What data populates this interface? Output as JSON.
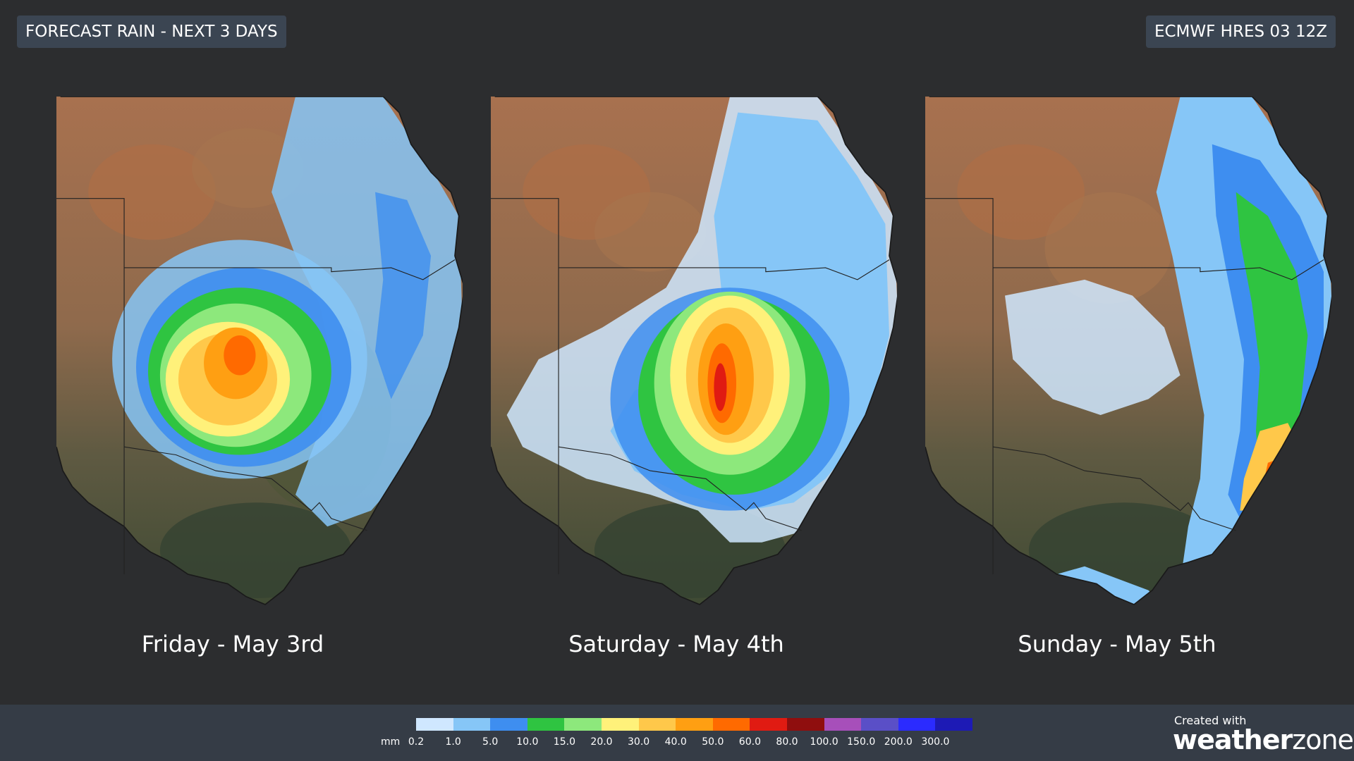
{
  "header": {
    "title": "FORECAST RAIN - NEXT 3 DAYS",
    "model": "ECMWF HRES 03 12Z"
  },
  "panels": [
    {
      "day": "Friday - May 3rd"
    },
    {
      "day": "Saturday - May 4th"
    },
    {
      "day": "Sunday - May 5th"
    }
  ],
  "legend": {
    "unit": "mm",
    "ticks": [
      "0.2",
      "1.0",
      "5.0",
      "10.0",
      "15.0",
      "20.0",
      "30.0",
      "40.0",
      "50.0",
      "60.0",
      "80.0",
      "100.0",
      "150.0",
      "200.0",
      "300.0"
    ],
    "colors": [
      "#cfe7ff",
      "#86c6f7",
      "#3e8ef0",
      "#2fc441",
      "#8de87c",
      "#fff17a",
      "#ffc84a",
      "#ff9f12",
      "#ff6a00",
      "#e01b12",
      "#8f0e0e",
      "#a74fba",
      "#5a4fc7",
      "#2b2bff",
      "#1d1ab5"
    ]
  },
  "branding": {
    "created_with": "Created with",
    "brand_primary": "weather",
    "brand_secondary": "zone"
  }
}
